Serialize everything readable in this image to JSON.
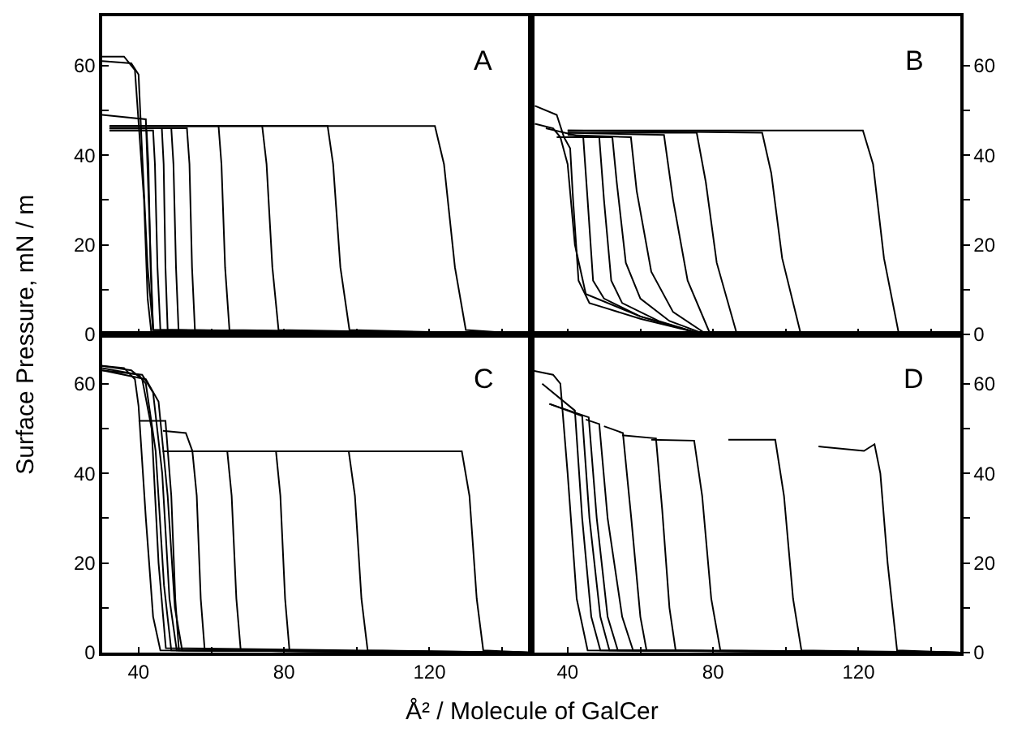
{
  "chart_data": [
    {
      "type": "line",
      "title": "A",
      "ylabel": "Surface Pressure, mN / m",
      "xlim": [
        30,
        148
      ],
      "ylim": [
        0,
        71
      ],
      "xticks": [
        40,
        {
          "value": 60,
          "label": null
        },
        80,
        {
          "value": 100,
          "label": null
        },
        120,
        {
          "value": 140,
          "label": null
        }
      ],
      "yticks": [
        0,
        {
          "value": 10,
          "label": null
        },
        20,
        {
          "value": 30,
          "label": null
        },
        40,
        {
          "value": 50,
          "label": null
        },
        60
      ],
      "tick_labels": "y",
      "grid": false,
      "marker": "none",
      "line_style": "solid",
      "series": [
        {
          "color": "#000000",
          "x": [
            32,
            121.5,
            124,
            127,
            130,
            148
          ],
          "values": [
            46.5,
            46.5,
            38,
            15,
            1,
            0
          ]
        },
        {
          "color": "#000000",
          "x": [
            32,
            92,
            93.5,
            95.5,
            98,
            148
          ],
          "values": [
            46.5,
            46.5,
            38,
            15,
            1,
            0
          ]
        },
        {
          "color": "#000000",
          "x": [
            32,
            74,
            75.2,
            76.8,
            78.5,
            148
          ],
          "values": [
            46.5,
            46.5,
            38,
            15,
            1,
            0
          ]
        },
        {
          "color": "#000000",
          "x": [
            32,
            62,
            62.8,
            63.8,
            65,
            148
          ],
          "values": [
            46.5,
            46.5,
            38,
            15,
            1,
            0
          ]
        },
        {
          "color": "#000000",
          "x": [
            32,
            53.3,
            54,
            54.7,
            55.5,
            148
          ],
          "values": [
            46,
            46,
            38,
            15,
            1,
            0
          ]
        },
        {
          "color": "#000000",
          "x": [
            32,
            49,
            49.6,
            50.3,
            51,
            148
          ],
          "values": [
            46,
            46,
            38,
            15,
            1,
            0
          ]
        },
        {
          "color": "#000000",
          "x": [
            32,
            46.4,
            46.9,
            47.4,
            48,
            148
          ],
          "values": [
            46,
            46,
            38,
            15,
            1,
            0
          ]
        },
        {
          "color": "#000000",
          "x": [
            32,
            44,
            44.5,
            45.2,
            46,
            148
          ],
          "values": [
            45.5,
            45.5,
            38,
            15,
            1,
            0
          ]
        },
        {
          "color": "#000000",
          "x": [
            32,
            42.2,
            42.7,
            43.3,
            44,
            148
          ],
          "values": [
            45.5,
            45.5,
            38,
            15,
            1,
            0
          ]
        },
        {
          "color": "#000000",
          "x": [
            30,
            38,
            40,
            41,
            42.5,
            44,
            148
          ],
          "values": [
            61,
            60.5,
            58,
            40,
            15,
            1,
            0
          ]
        },
        {
          "color": "#000000",
          "x": [
            30,
            36,
            39,
            41.5,
            42.5,
            43.5,
            148
          ],
          "values": [
            62,
            62,
            59,
            30,
            8,
            0.5,
            0
          ]
        },
        {
          "color": "#000000",
          "x": [
            30,
            42,
            43,
            44,
            148
          ],
          "values": [
            49,
            48,
            25,
            1,
            0
          ]
        }
      ]
    },
    {
      "type": "line",
      "title": "B",
      "xlim": [
        30,
        148
      ],
      "ylim": [
        0,
        71
      ],
      "xticks": [
        40,
        {
          "value": 60,
          "label": null
        },
        80,
        {
          "value": 100,
          "label": null
        },
        120,
        {
          "value": 140,
          "label": null
        }
      ],
      "yticks": [
        0,
        {
          "value": 10,
          "label": null
        },
        20,
        {
          "value": 30,
          "label": null
        },
        40,
        {
          "value": 50,
          "label": null
        },
        60
      ],
      "tick_labels": "y",
      "grid": false,
      "marker": "none",
      "line_style": "solid",
      "series": [
        {
          "color": "#000000",
          "x": [
            40,
            121.2,
            124,
            127,
            131,
            148
          ],
          "values": [
            45.5,
            45.5,
            38,
            17,
            0.5,
            0
          ]
        },
        {
          "color": "#000000",
          "x": [
            40,
            93.5,
            96,
            99,
            104,
            148
          ],
          "values": [
            45.5,
            45,
            36,
            17,
            0.5,
            0
          ]
        },
        {
          "color": "#000000",
          "x": [
            40,
            75.5,
            78,
            81,
            86.4,
            148
          ],
          "values": [
            45,
            45,
            34,
            16,
            0.5,
            0
          ]
        },
        {
          "color": "#000000",
          "x": [
            40,
            66.5,
            69,
            73,
            79,
            148
          ],
          "values": [
            45,
            44.5,
            30,
            12,
            0.5,
            0
          ]
        },
        {
          "color": "#000000",
          "x": [
            40,
            57.4,
            59,
            63,
            69,
            77.7,
            148
          ],
          "values": [
            44.5,
            44,
            32,
            14,
            5,
            0.3,
            0
          ]
        },
        {
          "color": "#000000",
          "x": [
            40,
            52.3,
            53.5,
            56,
            60,
            68,
            77,
            148
          ],
          "values": [
            44,
            44,
            34,
            16,
            8,
            3,
            0.3,
            0
          ]
        },
        {
          "color": "#000000",
          "x": [
            37,
            48.7,
            50,
            52,
            55,
            65,
            76,
            148
          ],
          "values": [
            44,
            44,
            30,
            12,
            7,
            3,
            0.3,
            0
          ]
        },
        {
          "color": "#000000",
          "x": [
            34,
            44.3,
            45.5,
            47,
            50,
            60,
            76,
            148
          ],
          "values": [
            46,
            44,
            30,
            12,
            8,
            4,
            0.3,
            0
          ]
        },
        {
          "color": "#000000",
          "x": [
            31,
            37,
            39,
            40.7,
            41.5,
            43,
            46,
            50,
            60,
            76,
            148
          ],
          "values": [
            51,
            49,
            44,
            41.5,
            30,
            12,
            7,
            6,
            3.5,
            0.3,
            0
          ]
        },
        {
          "color": "#000000",
          "x": [
            31,
            36,
            38,
            40,
            42,
            45,
            60,
            75,
            148
          ],
          "values": [
            47,
            46,
            44,
            38,
            20,
            9,
            4,
            0.5,
            0
          ]
        }
      ]
    },
    {
      "type": "line",
      "title": "C",
      "xlim": [
        30,
        148
      ],
      "ylim": [
        0,
        71
      ],
      "xticks": [
        40,
        {
          "value": 60,
          "label": null
        },
        80,
        {
          "value": 100,
          "label": null
        },
        120,
        {
          "value": 140,
          "label": null
        }
      ],
      "yticks": [
        0,
        {
          "value": 10,
          "label": null
        },
        20,
        {
          "value": 30,
          "label": null
        },
        40,
        {
          "value": 50,
          "label": null
        },
        60
      ],
      "grid": false,
      "marker": "none",
      "line_style": "solid",
      "series": [
        {
          "color": "#000000",
          "x": [
            46.7,
            128.9,
            131,
            133,
            134.8,
            148
          ],
          "values": [
            44.9,
            44.9,
            35,
            12,
            0.5,
            0
          ]
        },
        {
          "color": "#000000",
          "x": [
            46.7,
            97.8,
            99.5,
            101.3,
            103,
            148
          ],
          "values": [
            44.9,
            44.9,
            35,
            12,
            0.5,
            0
          ]
        },
        {
          "color": "#000000",
          "x": [
            46.7,
            77.8,
            79,
            80.3,
            81.5,
            148
          ],
          "values": [
            44.9,
            44.9,
            35,
            12,
            0.5,
            0
          ]
        },
        {
          "color": "#000000",
          "x": [
            46.7,
            64.4,
            65.6,
            66.9,
            68.1,
            148
          ],
          "values": [
            44.9,
            44.9,
            35,
            12,
            0.5,
            0
          ]
        },
        {
          "color": "#000000",
          "x": [
            46.7,
            53,
            54.8,
            56,
            57.1,
            58.2,
            148
          ],
          "values": [
            49.5,
            49,
            45,
            35,
            12,
            0.5,
            0
          ]
        },
        {
          "color": "#000000",
          "x": [
            40,
            47.4,
            49,
            50.1,
            51.1,
            148
          ],
          "values": [
            51.7,
            51.7,
            35,
            12,
            0.5,
            0
          ]
        },
        {
          "color": "#000000",
          "x": [
            30,
            36,
            39,
            40,
            42,
            44,
            46,
            148
          ],
          "values": [
            64,
            63.5,
            61,
            55,
            30,
            8,
            0.5,
            0
          ]
        },
        {
          "color": "#000000",
          "x": [
            30,
            38,
            41,
            43.6,
            45.5,
            47.5,
            148
          ],
          "values": [
            64,
            63,
            61,
            50,
            20,
            1,
            0
          ]
        },
        {
          "color": "#000000",
          "x": [
            30,
            40,
            42,
            44.7,
            47,
            49,
            148
          ],
          "values": [
            63.5,
            62,
            60,
            45,
            15,
            0.5,
            0
          ]
        },
        {
          "color": "#000000",
          "x": [
            30,
            41,
            44,
            46.5,
            48.5,
            50.5,
            148
          ],
          "values": [
            63,
            62,
            58,
            40,
            12,
            0.5,
            0
          ]
        },
        {
          "color": "#000000",
          "x": [
            30,
            42,
            45.5,
            48,
            50,
            52,
            148
          ],
          "values": [
            63,
            61,
            56,
            35,
            10,
            0.5,
            0
          ]
        }
      ]
    },
    {
      "type": "line",
      "title": "D",
      "xlabel": "Å² / Molecule of GalCer",
      "xlim": [
        30,
        148
      ],
      "ylim": [
        0,
        71
      ],
      "xticks": [
        40,
        {
          "value": 60,
          "label": null
        },
        80,
        {
          "value": 100,
          "label": null
        },
        120,
        {
          "value": 140,
          "label": null
        }
      ],
      "yticks": [
        0,
        {
          "value": 10,
          "label": null
        },
        20,
        {
          "value": 30,
          "label": null
        },
        40,
        {
          "value": 50,
          "label": null
        },
        60
      ],
      "grid": false,
      "marker": "none",
      "line_style": "solid",
      "series": [
        {
          "color": "#000000",
          "x": [
            109,
            121.5,
            124.4,
            126,
            128,
            130.6,
            148
          ],
          "values": [
            46,
            45,
            46.5,
            40,
            20,
            0.5,
            0
          ]
        },
        {
          "color": "#000000",
          "x": [
            84.2,
            97.1,
            99.5,
            102,
            104.3,
            148
          ],
          "values": [
            47.5,
            47.5,
            35,
            12,
            0.5,
            0
          ]
        },
        {
          "color": "#000000",
          "x": [
            63,
            74.8,
            77,
            79.5,
            82,
            148
          ],
          "values": [
            47.5,
            47.3,
            35,
            12,
            0.5,
            0
          ]
        },
        {
          "color": "#000000",
          "x": [
            55,
            64.3,
            66,
            68,
            69.7,
            148
          ],
          "values": [
            48.5,
            47.8,
            32,
            10,
            0.5,
            0
          ]
        },
        {
          "color": "#000000",
          "x": [
            50,
            55.2,
            57.5,
            60,
            61.7,
            148
          ],
          "values": [
            50.5,
            49,
            30,
            8,
            0.5,
            0
          ]
        },
        {
          "color": "#000000",
          "x": [
            45,
            48.7,
            51,
            55,
            58,
            148
          ],
          "values": [
            52,
            51,
            30,
            8,
            0.5,
            0
          ]
        },
        {
          "color": "#000000",
          "x": [
            35,
            45.8,
            48,
            51,
            53.8,
            148
          ],
          "values": [
            55.5,
            52.5,
            30,
            8,
            0.5,
            0
          ]
        },
        {
          "color": "#000000",
          "x": [
            35,
            44,
            46,
            49,
            51.5,
            148
          ],
          "values": [
            55.5,
            52.8,
            30,
            8,
            0.5,
            0
          ]
        },
        {
          "color": "#000000",
          "x": [
            33,
            42,
            44,
            46.5,
            49,
            148
          ],
          "values": [
            60,
            54,
            30,
            8,
            0.5,
            0
          ]
        },
        {
          "color": "#000000",
          "x": [
            30,
            36,
            38,
            40,
            42.5,
            45.5,
            148
          ],
          "values": [
            63,
            62,
            60,
            40,
            12,
            0.5,
            0
          ]
        }
      ]
    }
  ]
}
